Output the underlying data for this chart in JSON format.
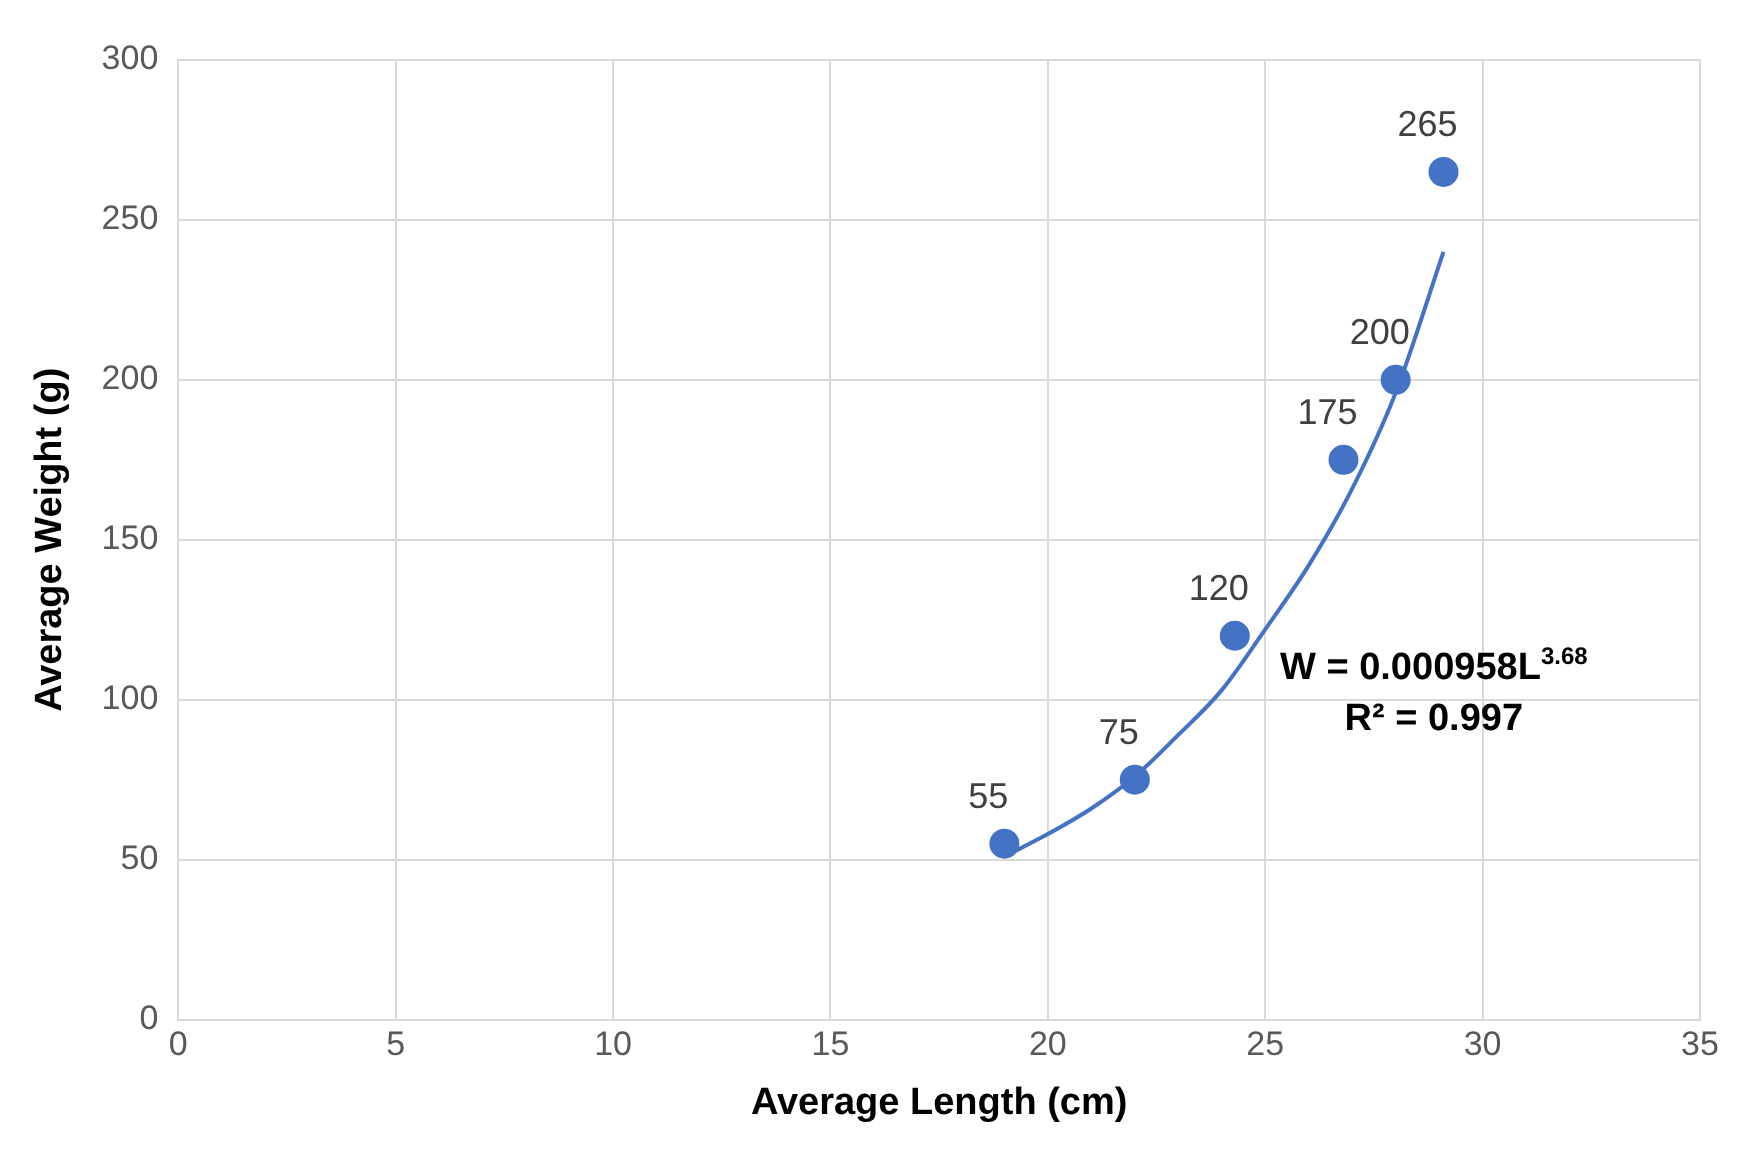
{
  "chart_data": {
    "type": "scatter",
    "xlabel": "Average Length (cm)",
    "ylabel": "Average Weight (g)",
    "xlim": [
      0,
      35
    ],
    "xticks": [
      0,
      5,
      10,
      15,
      20,
      25,
      30,
      35
    ],
    "ylim": [
      0,
      300
    ],
    "yticks": [
      0,
      50,
      100,
      150,
      200,
      250,
      300
    ],
    "grid": true,
    "legend": false,
    "marker": "circle",
    "series": [
      {
        "type": "scatter",
        "color": "#4472c4",
        "x": [
          19.0,
          22.0,
          24.3,
          26.8,
          28.0,
          29.1
        ],
        "values": [
          55,
          75,
          120,
          175,
          200,
          265
        ],
        "value_labels": [
          "55",
          "75",
          "120",
          "175",
          "200",
          "265"
        ]
      },
      {
        "type": "line",
        "color": "#4472c4",
        "marker": "none",
        "x": [
          19,
          20,
          21,
          22,
          23,
          24,
          25,
          26,
          27,
          28,
          29.1
        ],
        "values": [
          51,
          58,
          66,
          76,
          89,
          103,
          122,
          142,
          166,
          196,
          240
        ]
      }
    ],
    "annotations": [
      "W = 0.000958L$^{3.68}$",
      "R² = 0.997"
    ]
  }
}
